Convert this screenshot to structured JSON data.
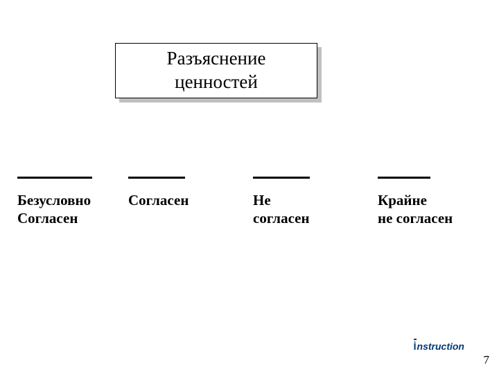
{
  "title": {
    "line1": "Разъяснение",
    "line2": "ценностей"
  },
  "scale": {
    "items": [
      {
        "label": "Безусловно\nСогласен"
      },
      {
        "label": "Согласен"
      },
      {
        "label": "Не\nсогласен"
      },
      {
        "label": "Крайне\nне согласен"
      }
    ]
  },
  "footer": {
    "logo_i": "İ",
    "logo_text": "nstruction",
    "logo_sub": "",
    "page_number": "7"
  },
  "styling": {
    "background_color": "#ffffff",
    "title_box_border_color": "#000000",
    "title_box_shadow_color": "#c0c0c0",
    "title_fontsize": 27,
    "label_fontsize": 21,
    "label_fontweight": "bold",
    "line_color": "#000000",
    "line_thickness": 2.5,
    "logo_color": "#003b72",
    "page_number_fontsize": 17
  }
}
